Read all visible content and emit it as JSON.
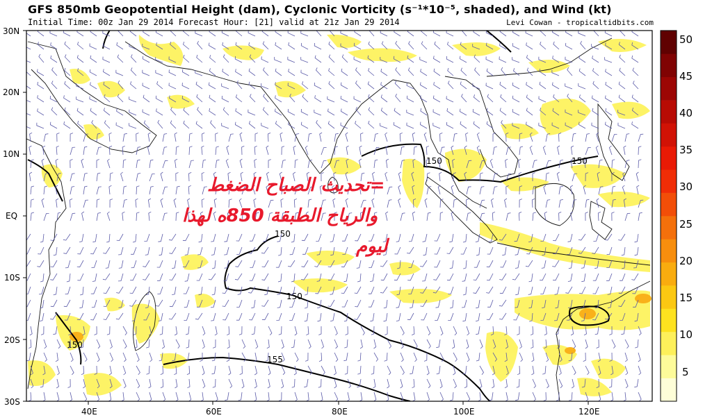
{
  "header": {
    "title": "GFS 850mb Geopotential Height (dam), Cyclonic Vorticity (s⁻¹*10⁻⁵, shaded), and Wind (kt)",
    "subtitle": "Initial Time: 00z Jan 29 2014 Forecast Hour: [21] valid at 21z Jan 29 2014",
    "credit": "Levi Cowan - tropicaltidbits.com"
  },
  "map": {
    "lat_labels": [
      "30N",
      "20N",
      "10N",
      "EQ",
      "10S",
      "20S",
      "30S"
    ],
    "lon_labels": [
      "40E",
      "60E",
      "80E",
      "100E",
      "120E"
    ],
    "contour_labels": [
      "150",
      "150",
      "150",
      "150",
      "150",
      "155"
    ]
  },
  "colorbar": {
    "labels": [
      "50",
      "45",
      "40",
      "35",
      "30",
      "25",
      "20",
      "15",
      "10",
      "5"
    ],
    "colors": [
      "#fefed8",
      "#fdfb9a",
      "#fdf05a",
      "#fde21f",
      "#fbc812",
      "#f9ac0f",
      "#f78e0d",
      "#f4700b",
      "#f24e08",
      "#f02d06",
      "#e91a05",
      "#d11205",
      "#b80b04",
      "#9c0604",
      "#800303",
      "#600101"
    ]
  },
  "overlay": {
    "line1": "=تحديث الصباح الضغط",
    "line2": "والرياح الطبقة 850ه لهذا",
    "line3": "ليوم"
  }
}
